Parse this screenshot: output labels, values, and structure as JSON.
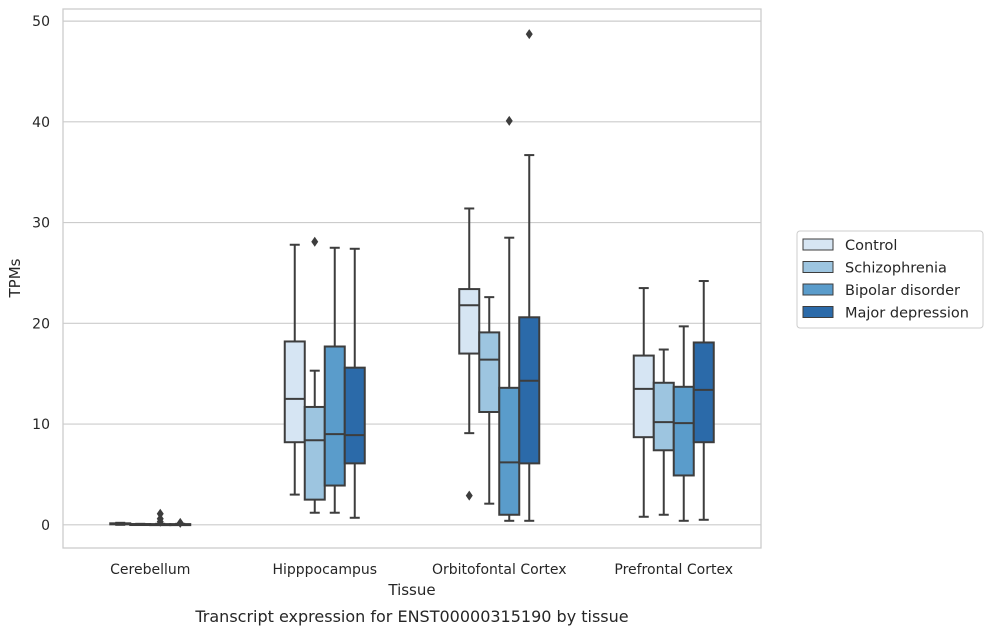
{
  "chart_data": {
    "type": "box",
    "caption": "Transcript expression for ENST00000315190 by tissue",
    "xlabel": "Tissue",
    "ylabel": "TPMs",
    "ylim": [
      -2.3,
      51.2
    ],
    "yticks": [
      0,
      10,
      20,
      30,
      40,
      50
    ],
    "grid": "horizontal",
    "legend_position": "right",
    "categories": [
      "Cerebellum",
      "Hipppocampus",
      "Orbitofontal Cortex",
      "Prefrontal Cortex"
    ],
    "series": [
      {
        "name": "Control",
        "color": "#d6e5f3",
        "boxes": [
          {
            "whisker_low": 0.0,
            "q1": 0.05,
            "median": 0.1,
            "q3": 0.15,
            "whisker_high": 0.2,
            "outliers": []
          },
          {
            "whisker_low": 3.0,
            "q1": 8.2,
            "median": 12.5,
            "q3": 18.2,
            "whisker_high": 27.8,
            "outliers": []
          },
          {
            "whisker_low": 9.1,
            "q1": 17.0,
            "median": 21.8,
            "q3": 23.4,
            "whisker_high": 31.4,
            "outliers": [
              2.9
            ]
          },
          {
            "whisker_low": 0.8,
            "q1": 8.7,
            "median": 13.5,
            "q3": 16.8,
            "whisker_high": 23.5,
            "outliers": []
          }
        ]
      },
      {
        "name": "Schizophrenia",
        "color": "#9dc5e0",
        "boxes": [
          {
            "whisker_low": 0.0,
            "q1": 0.03,
            "median": 0.05,
            "q3": 0.08,
            "whisker_high": 0.1,
            "outliers": []
          },
          {
            "whisker_low": 1.2,
            "q1": 2.5,
            "median": 8.4,
            "q3": 11.7,
            "whisker_high": 15.3,
            "outliers": [
              28.1
            ]
          },
          {
            "whisker_low": 2.1,
            "q1": 11.2,
            "median": 16.4,
            "q3": 19.1,
            "whisker_high": 22.6,
            "outliers": []
          },
          {
            "whisker_low": 1.0,
            "q1": 7.4,
            "median": 10.2,
            "q3": 14.1,
            "whisker_high": 17.4,
            "outliers": []
          }
        ]
      },
      {
        "name": "Bipolar disorder",
        "color": "#5a9ccb",
        "boxes": [
          {
            "whisker_low": 0.0,
            "q1": 0.02,
            "median": 0.05,
            "q3": 0.07,
            "whisker_high": 0.1,
            "outliers": [
              1.1,
              0.6,
              0.3
            ]
          },
          {
            "whisker_low": 1.2,
            "q1": 3.9,
            "median": 9.0,
            "q3": 17.7,
            "whisker_high": 27.5,
            "outliers": []
          },
          {
            "whisker_low": 0.4,
            "q1": 1.0,
            "median": 6.2,
            "q3": 13.6,
            "whisker_high": 28.5,
            "outliers": [
              40.1
            ]
          },
          {
            "whisker_low": 0.4,
            "q1": 4.9,
            "median": 10.1,
            "q3": 13.7,
            "whisker_high": 19.7,
            "outliers": []
          }
        ]
      },
      {
        "name": "Major depression",
        "color": "#2b6aa9",
        "boxes": [
          {
            "whisker_low": 0.0,
            "q1": 0.02,
            "median": 0.05,
            "q3": 0.07,
            "whisker_high": 0.1,
            "outliers": [
              0.2
            ]
          },
          {
            "whisker_low": 0.7,
            "q1": 6.1,
            "median": 8.9,
            "q3": 15.6,
            "whisker_high": 27.4,
            "outliers": []
          },
          {
            "whisker_low": 0.4,
            "q1": 6.1,
            "median": 14.3,
            "q3": 20.6,
            "whisker_high": 36.7,
            "outliers": [
              48.7
            ]
          },
          {
            "whisker_low": 0.5,
            "q1": 8.2,
            "median": 13.4,
            "q3": 18.1,
            "whisker_high": 24.2,
            "outliers": []
          }
        ]
      }
    ]
  }
}
